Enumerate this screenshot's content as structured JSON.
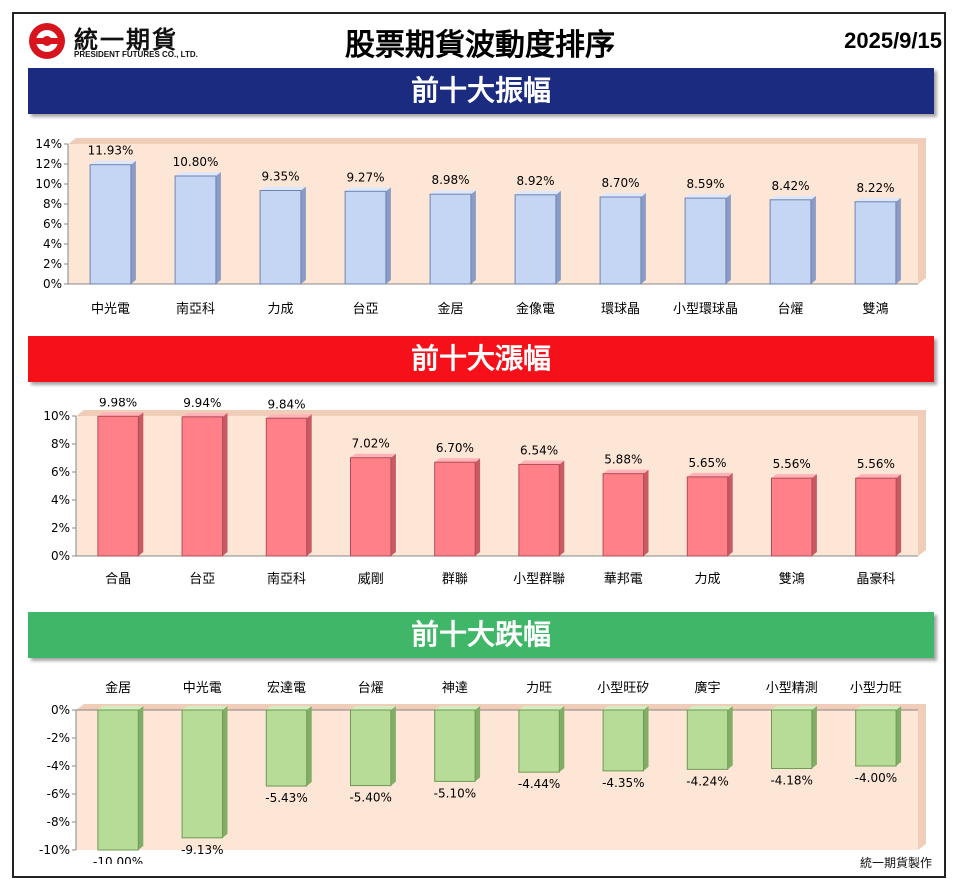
{
  "header": {
    "logo_cn": "統一期貨",
    "logo_en": "PRESIDENT FUTURES CO., LTD.",
    "title": "股票期貨波動度排序",
    "date": "2025/9/15"
  },
  "colors": {
    "blue_banner": "#1a2b80",
    "red_banner": "#f5101a",
    "green_banner": "#3fb668",
    "plot_bg": "#fde6d6",
    "bar_blue": "#c5d6f5",
    "bar_red": "#ff8088",
    "bar_green": "#b6dc98",
    "logo_red": "#d7141e"
  },
  "credit": "統一期貨製作",
  "chart_data": [
    {
      "type": "bar",
      "banner": "前十大振幅",
      "categories": [
        "中光電",
        "南亞科",
        "力成",
        "台亞",
        "金居",
        "金像電",
        "環球晶",
        "小型環球晶",
        "台燿",
        "雙鴻"
      ],
      "values": [
        11.93,
        10.8,
        9.35,
        9.27,
        8.98,
        8.92,
        8.7,
        8.59,
        8.42,
        8.22
      ],
      "data_labels": [
        "11.93%",
        "10.80%",
        "9.35%",
        "9.27%",
        "8.98%",
        "8.92%",
        "8.70%",
        "8.59%",
        "8.42%",
        "8.22%"
      ],
      "ylim": [
        0,
        14
      ],
      "yticks": [
        0,
        2,
        4,
        6,
        8,
        10,
        12,
        14
      ],
      "ytick_labels": [
        "0%",
        "2%",
        "4%",
        "6%",
        "8%",
        "10%",
        "12%",
        "14%"
      ],
      "grid": false
    },
    {
      "type": "bar",
      "banner": "前十大漲幅",
      "categories": [
        "合晶",
        "台亞",
        "南亞科",
        "威剛",
        "群聯",
        "小型群聯",
        "華邦電",
        "力成",
        "雙鴻",
        "晶豪科"
      ],
      "values": [
        9.98,
        9.94,
        9.84,
        7.02,
        6.7,
        6.54,
        5.88,
        5.65,
        5.56,
        5.56
      ],
      "data_labels": [
        "9.98%",
        "9.94%",
        "9.84%",
        "7.02%",
        "6.70%",
        "6.54%",
        "5.88%",
        "5.65%",
        "5.56%",
        "5.56%"
      ],
      "ylim": [
        0,
        10
      ],
      "yticks": [
        0,
        2,
        4,
        6,
        8,
        10
      ],
      "ytick_labels": [
        "0%",
        "2%",
        "4%",
        "6%",
        "8%",
        "10%"
      ],
      "grid": false
    },
    {
      "type": "bar",
      "banner": "前十大跌幅",
      "categories": [
        "金居",
        "中光電",
        "宏達電",
        "台燿",
        "神達",
        "力旺",
        "小型旺矽",
        "廣宇",
        "小型精測",
        "小型力旺"
      ],
      "values": [
        -10.0,
        -9.13,
        -5.43,
        -5.4,
        -5.1,
        -4.44,
        -4.35,
        -4.24,
        -4.18,
        -4.0
      ],
      "data_labels": [
        "-10.00%",
        "-9.13%",
        "-5.43%",
        "-5.40%",
        "-5.10%",
        "-4.44%",
        "-4.35%",
        "-4.24%",
        "-4.18%",
        "-4.00%"
      ],
      "ylim": [
        -10,
        0
      ],
      "yticks": [
        0,
        -2,
        -4,
        -6,
        -8,
        -10
      ],
      "ytick_labels": [
        "0%",
        "-2%",
        "-4%",
        "-6%",
        "-8%",
        "-10%"
      ],
      "grid": false
    }
  ]
}
